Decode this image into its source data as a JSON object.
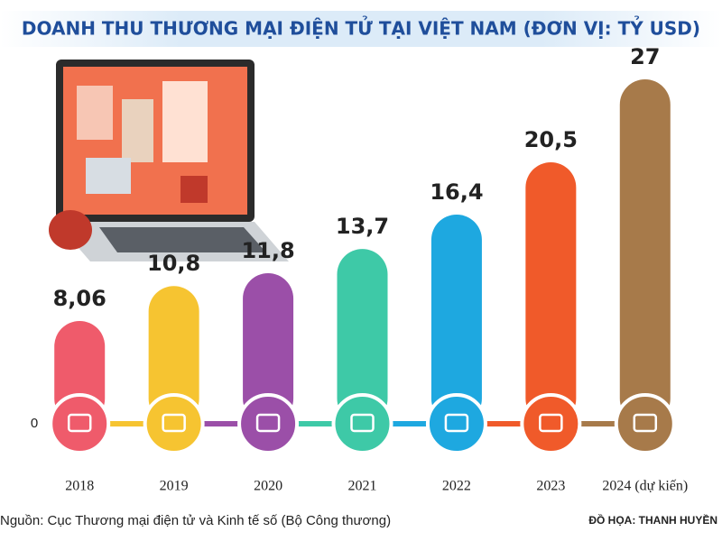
{
  "chart_data": {
    "type": "bar",
    "title": "DOANH THU THƯƠNG MẠI ĐIỆN TỬ TẠI VIỆT NAM (ĐƠN VỊ: TỶ USD)",
    "categories": [
      "2018",
      "2019",
      "2020",
      "2021",
      "2022",
      "2023",
      "2024 (dự kiến)"
    ],
    "values": [
      8.06,
      10.8,
      11.8,
      13.7,
      16.4,
      20.5,
      27
    ],
    "value_labels": [
      "8,06",
      "10,8",
      "11,8",
      "13,7",
      "16,4",
      "20,5",
      "27"
    ],
    "colors": [
      "#ef5b6b",
      "#f6c431",
      "#9b4fa8",
      "#3ec9a7",
      "#1ea8e0",
      "#f05a2a",
      "#a77a4a"
    ],
    "ylim": [
      0,
      27
    ],
    "yticks": [
      0
    ],
    "source": "Nguồn: Cục Thương mại điện tử và Kinh tế số (Bộ Công thương)",
    "credit": "ĐỒ HỌA: THANH HUYỀN"
  }
}
